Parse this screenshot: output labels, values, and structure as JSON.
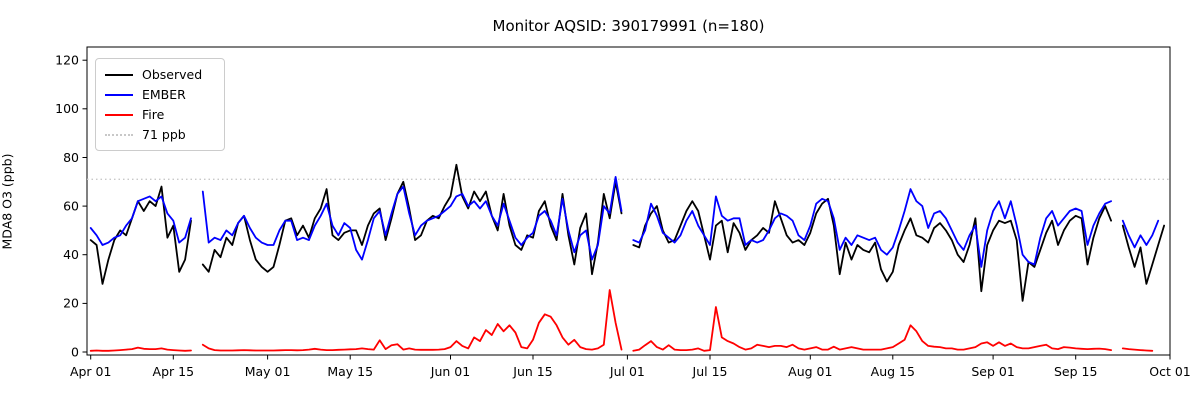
{
  "chart_data": {
    "type": "line",
    "title": "Monitor AQSID: 390179991 (n=180)",
    "xlabel": "",
    "ylabel": "MDA8 O3 (ppb)",
    "grid": false,
    "legend_position": "upper left",
    "ylim": [
      -1.2,
      125.4
    ],
    "y_ticks": [
      0,
      20,
      40,
      60,
      80,
      100,
      120
    ],
    "x_unit": "days since Apr 01, daily cadence, nulls = missing days",
    "x_ticks": {
      "days": [
        0,
        14,
        30,
        44,
        61,
        75,
        91,
        105,
        122,
        136,
        153,
        167,
        183
      ],
      "labels": [
        "Apr 01",
        "Apr 15",
        "May 01",
        "May 15",
        "Jun 01",
        "Jun 15",
        "Jul 01",
        "Jul 15",
        "Aug 01",
        "Aug 15",
        "Sep 01",
        "Sep 15",
        "Oct 01"
      ]
    },
    "threshold": {
      "label": "71 ppb",
      "value": 71,
      "color": "#c8c8c8",
      "style": "dotted"
    },
    "axis_color": "#000000",
    "series": [
      {
        "name": "Observed",
        "color": "#000000",
        "values": [
          46,
          44,
          28,
          38,
          46,
          50,
          48,
          55,
          62,
          58,
          62,
          60,
          68,
          47,
          52,
          33,
          38,
          54,
          null,
          36,
          33,
          42,
          39,
          47,
          44,
          53,
          56,
          46,
          38,
          35,
          33,
          35,
          44,
          54,
          55,
          48,
          52,
          47,
          55,
          59,
          67,
          48,
          46,
          49,
          50,
          50,
          44,
          52,
          57,
          59,
          46,
          55,
          65,
          70,
          59,
          46,
          48,
          54,
          56,
          55,
          60,
          64,
          77,
          64,
          59,
          66,
          62,
          66,
          56,
          50,
          65,
          52,
          44,
          42,
          48,
          47,
          58,
          62,
          52,
          46,
          65,
          48,
          36,
          51,
          57,
          32,
          45,
          65,
          55,
          70,
          57,
          null,
          44,
          43,
          52,
          57,
          60,
          50,
          45,
          46,
          52,
          58,
          62,
          58,
          48,
          38,
          52,
          54,
          41,
          53,
          49,
          42,
          46,
          48,
          51,
          49,
          62,
          55,
          48,
          45,
          46,
          44,
          49,
          57,
          61,
          63,
          52,
          32,
          45,
          38,
          44,
          42,
          41,
          45,
          34,
          29,
          33,
          44,
          50,
          55,
          48,
          47,
          45,
          51,
          53,
          50,
          46,
          40,
          37,
          44,
          55,
          25,
          44,
          50,
          54,
          53,
          54,
          46,
          21,
          37,
          35,
          42,
          49,
          54,
          44,
          50,
          54,
          56,
          55,
          36,
          47,
          55,
          60,
          54,
          null,
          52,
          43,
          35,
          43,
          28,
          36,
          44,
          52
        ]
      },
      {
        "name": "EMBER",
        "color": "#0000ff",
        "values": [
          51,
          48,
          44,
          45,
          47,
          48,
          52,
          55,
          62,
          63,
          64,
          62,
          64,
          57,
          54,
          45,
          47,
          55,
          null,
          66,
          45,
          47,
          46,
          50,
          48,
          53,
          56,
          51,
          47,
          45,
          44,
          44,
          50,
          54,
          54,
          46,
          47,
          46,
          52,
          56,
          61,
          52,
          48,
          53,
          51,
          42,
          38,
          46,
          55,
          58,
          48,
          57,
          65,
          68,
          57,
          48,
          52,
          54,
          55,
          56,
          58,
          60,
          64,
          65,
          60,
          62,
          59,
          62,
          56,
          52,
          61,
          54,
          47,
          44,
          47,
          49,
          56,
          58,
          54,
          48,
          63,
          50,
          41,
          48,
          50,
          38,
          44,
          60,
          57,
          72,
          58,
          null,
          46,
          45,
          50,
          61,
          56,
          49,
          47,
          45,
          48,
          54,
          58,
          52,
          48,
          44,
          64,
          56,
          54,
          55,
          55,
          44,
          46,
          45,
          46,
          50,
          55,
          57,
          56,
          54,
          48,
          46,
          52,
          61,
          63,
          62,
          55,
          42,
          47,
          44,
          48,
          47,
          46,
          47,
          42,
          40,
          43,
          50,
          58,
          67,
          62,
          60,
          51,
          57,
          58,
          55,
          50,
          45,
          42,
          48,
          52,
          35,
          50,
          58,
          62,
          55,
          62,
          52,
          40,
          37,
          36,
          47,
          55,
          58,
          52,
          55,
          58,
          59,
          58,
          44,
          52,
          57,
          61,
          62,
          null,
          54,
          48,
          43,
          48,
          44,
          48,
          54,
          null
        ]
      },
      {
        "name": "Fire",
        "color": "#ff0000",
        "values": [
          0.5,
          0.6,
          0.5,
          0.5,
          0.6,
          0.8,
          1,
          1.2,
          1.8,
          1.3,
          1.2,
          1.2,
          1.5,
          1,
          0.8,
          0.6,
          0.5,
          0.6,
          null,
          3,
          1.5,
          0.8,
          0.6,
          0.6,
          0.6,
          0.7,
          0.8,
          0.7,
          0.6,
          0.6,
          0.6,
          0.6,
          0.7,
          0.8,
          0.8,
          0.7,
          0.8,
          1,
          1.3,
          1,
          0.8,
          0.8,
          0.9,
          1,
          1.1,
          1.2,
          1.5,
          1.2,
          1,
          4.8,
          1.2,
          2.8,
          3.2,
          1,
          1.5,
          1,
          0.9,
          0.9,
          0.9,
          1,
          1.2,
          2,
          4.5,
          2.5,
          1.5,
          6,
          4.5,
          9,
          7,
          11.5,
          8.5,
          11,
          8,
          2,
          1.5,
          5,
          12,
          15.5,
          14.5,
          11,
          6,
          3,
          5,
          2,
          1.2,
          1,
          1.5,
          3,
          25.5,
          12,
          1,
          null,
          0.5,
          1,
          2.8,
          4.5,
          2,
          1,
          2.8,
          1,
          0.8,
          0.8,
          1,
          1.5,
          0.5,
          0.8,
          18.5,
          6,
          4.5,
          3.5,
          2,
          1,
          1.5,
          3,
          2.5,
          2,
          2.5,
          2.5,
          2,
          3,
          1.5,
          1,
          1.5,
          2,
          1,
          1,
          2.2,
          1,
          1.5,
          2,
          1.5,
          1,
          1,
          1,
          1,
          1.5,
          2,
          3.5,
          5,
          11,
          8.5,
          4.5,
          2.5,
          2.2,
          2,
          1.5,
          1.5,
          1,
          1,
          1.5,
          2,
          3.5,
          4,
          2.5,
          4,
          2.5,
          3.5,
          2,
          1.5,
          1.5,
          2,
          2.5,
          3,
          1.5,
          1.2,
          2,
          1.8,
          1.5,
          1.3,
          1.2,
          1.3,
          1.4,
          1.2,
          0.8,
          null,
          1.5,
          1.2,
          1,
          0.8,
          0.6,
          0.5,
          null,
          null
        ]
      }
    ]
  }
}
